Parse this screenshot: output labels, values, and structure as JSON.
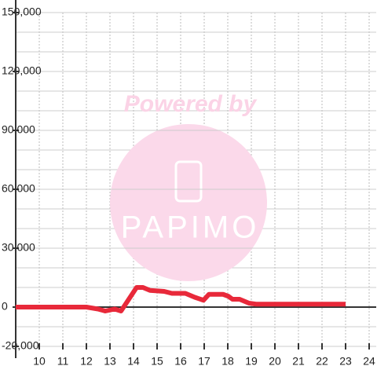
{
  "chart_data": {
    "type": "line",
    "watermark": {
      "text": "Powered by",
      "logo": "PAPIMO"
    },
    "xlim": [
      9,
      24.3
    ],
    "xticks": [
      10,
      11,
      12,
      13,
      14,
      15,
      16,
      17,
      18,
      19,
      20,
      21,
      22,
      23,
      24
    ],
    "ylim": [
      -20000,
      150000
    ],
    "yticks": [
      {
        "value": -20000,
        "label": "-20,000"
      },
      {
        "value": 0,
        "label": "0"
      },
      {
        "value": 30000,
        "label": "30,000"
      },
      {
        "value": 60000,
        "label": "60,000"
      },
      {
        "value": 90000,
        "label": "90,000"
      },
      {
        "value": 120000,
        "label": "120,000"
      },
      {
        "value": 150000,
        "label": "150,000"
      }
    ],
    "minor_yticks": [
      -10000,
      10000,
      20000,
      40000,
      50000,
      70000,
      80000,
      100000,
      110000,
      130000,
      140000
    ],
    "grid": true,
    "series": [
      {
        "color": "#e8293a",
        "x": [
          9,
          11,
          12,
          12.5,
          12.8,
          13.2,
          13.47,
          14.13,
          14.4,
          14.7,
          15.3,
          15.63,
          16.2,
          16.6,
          16.97,
          17.2,
          17.8,
          18.03,
          18.2,
          18.5,
          18.9,
          19.2,
          23
        ],
        "values": [
          0,
          0,
          0,
          -1000,
          -2000,
          -1000,
          -2000,
          10000,
          10000,
          8500,
          8000,
          7000,
          7000,
          5000,
          3500,
          6500,
          6500,
          5500,
          4000,
          4000,
          2000,
          1500,
          1500
        ]
      }
    ]
  }
}
